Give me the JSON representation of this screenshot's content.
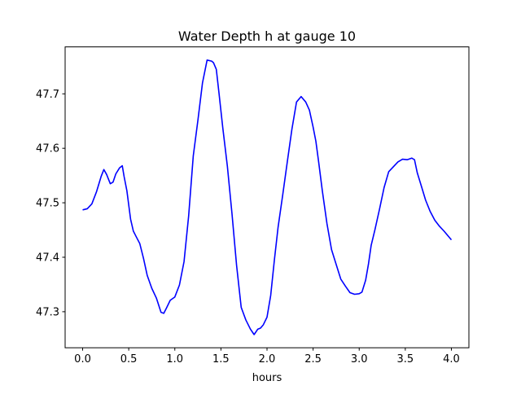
{
  "chart_data": {
    "type": "line",
    "title": "Water Depth h at gauge 10",
    "xlabel": "hours",
    "ylabel": "",
    "xlim": [
      -0.19,
      4.19
    ],
    "ylim": [
      47.2338,
      47.7862
    ],
    "x_ticks": [
      0.0,
      0.5,
      1.0,
      1.5,
      2.0,
      2.5,
      3.0,
      3.5,
      4.0
    ],
    "x_tick_labels": [
      "0.0",
      "0.5",
      "1.0",
      "1.5",
      "2.0",
      "2.5",
      "3.0",
      "3.5",
      "4.0"
    ],
    "y_ticks": [
      47.3,
      47.4,
      47.5,
      47.6,
      47.7
    ],
    "y_tick_labels": [
      "47.3",
      "47.4",
      "47.5",
      "47.6",
      "47.7"
    ],
    "grid": false,
    "legend": null,
    "series": [
      {
        "color": "#0000ff",
        "x": [
          0.0,
          0.05,
          0.1,
          0.15,
          0.2,
          0.23,
          0.26,
          0.3,
          0.33,
          0.36,
          0.4,
          0.43,
          0.45,
          0.48,
          0.52,
          0.55,
          0.58,
          0.62,
          0.66,
          0.7,
          0.75,
          0.8,
          0.85,
          0.88,
          0.91,
          0.95,
          1.0,
          1.05,
          1.1,
          1.15,
          1.2,
          1.25,
          1.3,
          1.35,
          1.4,
          1.42,
          1.45,
          1.48,
          1.52,
          1.57,
          1.62,
          1.67,
          1.72,
          1.77,
          1.82,
          1.86,
          1.9,
          1.93,
          1.96,
          2.0,
          2.04,
          2.08,
          2.12,
          2.17,
          2.22,
          2.27,
          2.32,
          2.37,
          2.42,
          2.46,
          2.5,
          2.53,
          2.56,
          2.6,
          2.65,
          2.7,
          2.75,
          2.8,
          2.85,
          2.9,
          2.95,
          3.0,
          3.03,
          3.07,
          3.1,
          3.13,
          3.17,
          3.22,
          3.27,
          3.32,
          3.37,
          3.42,
          3.47,
          3.52,
          3.57,
          3.6,
          3.63,
          3.67,
          3.72,
          3.77,
          3.82,
          3.87,
          3.92,
          3.96,
          4.0
        ],
        "y": [
          47.487,
          47.489,
          47.498,
          47.52,
          47.548,
          47.561,
          47.552,
          47.535,
          47.538,
          47.553,
          47.564,
          47.568,
          47.548,
          47.522,
          47.47,
          47.448,
          47.438,
          47.425,
          47.398,
          47.367,
          47.343,
          47.325,
          47.299,
          47.297,
          47.307,
          47.321,
          47.327,
          47.349,
          47.392,
          47.476,
          47.586,
          47.651,
          47.72,
          47.762,
          47.76,
          47.757,
          47.745,
          47.7,
          47.638,
          47.567,
          47.48,
          47.385,
          47.308,
          47.285,
          47.268,
          47.258,
          47.268,
          47.27,
          47.276,
          47.29,
          47.33,
          47.395,
          47.455,
          47.514,
          47.575,
          47.635,
          47.685,
          47.695,
          47.685,
          47.67,
          47.639,
          47.613,
          47.575,
          47.522,
          47.462,
          47.414,
          47.387,
          47.36,
          47.347,
          47.335,
          47.332,
          47.333,
          47.336,
          47.358,
          47.387,
          47.422,
          47.45,
          47.488,
          47.528,
          47.557,
          47.566,
          47.575,
          47.58,
          47.579,
          47.582,
          47.579,
          47.555,
          47.533,
          47.505,
          47.484,
          47.468,
          47.457,
          47.448,
          47.44,
          47.432
        ]
      }
    ]
  }
}
